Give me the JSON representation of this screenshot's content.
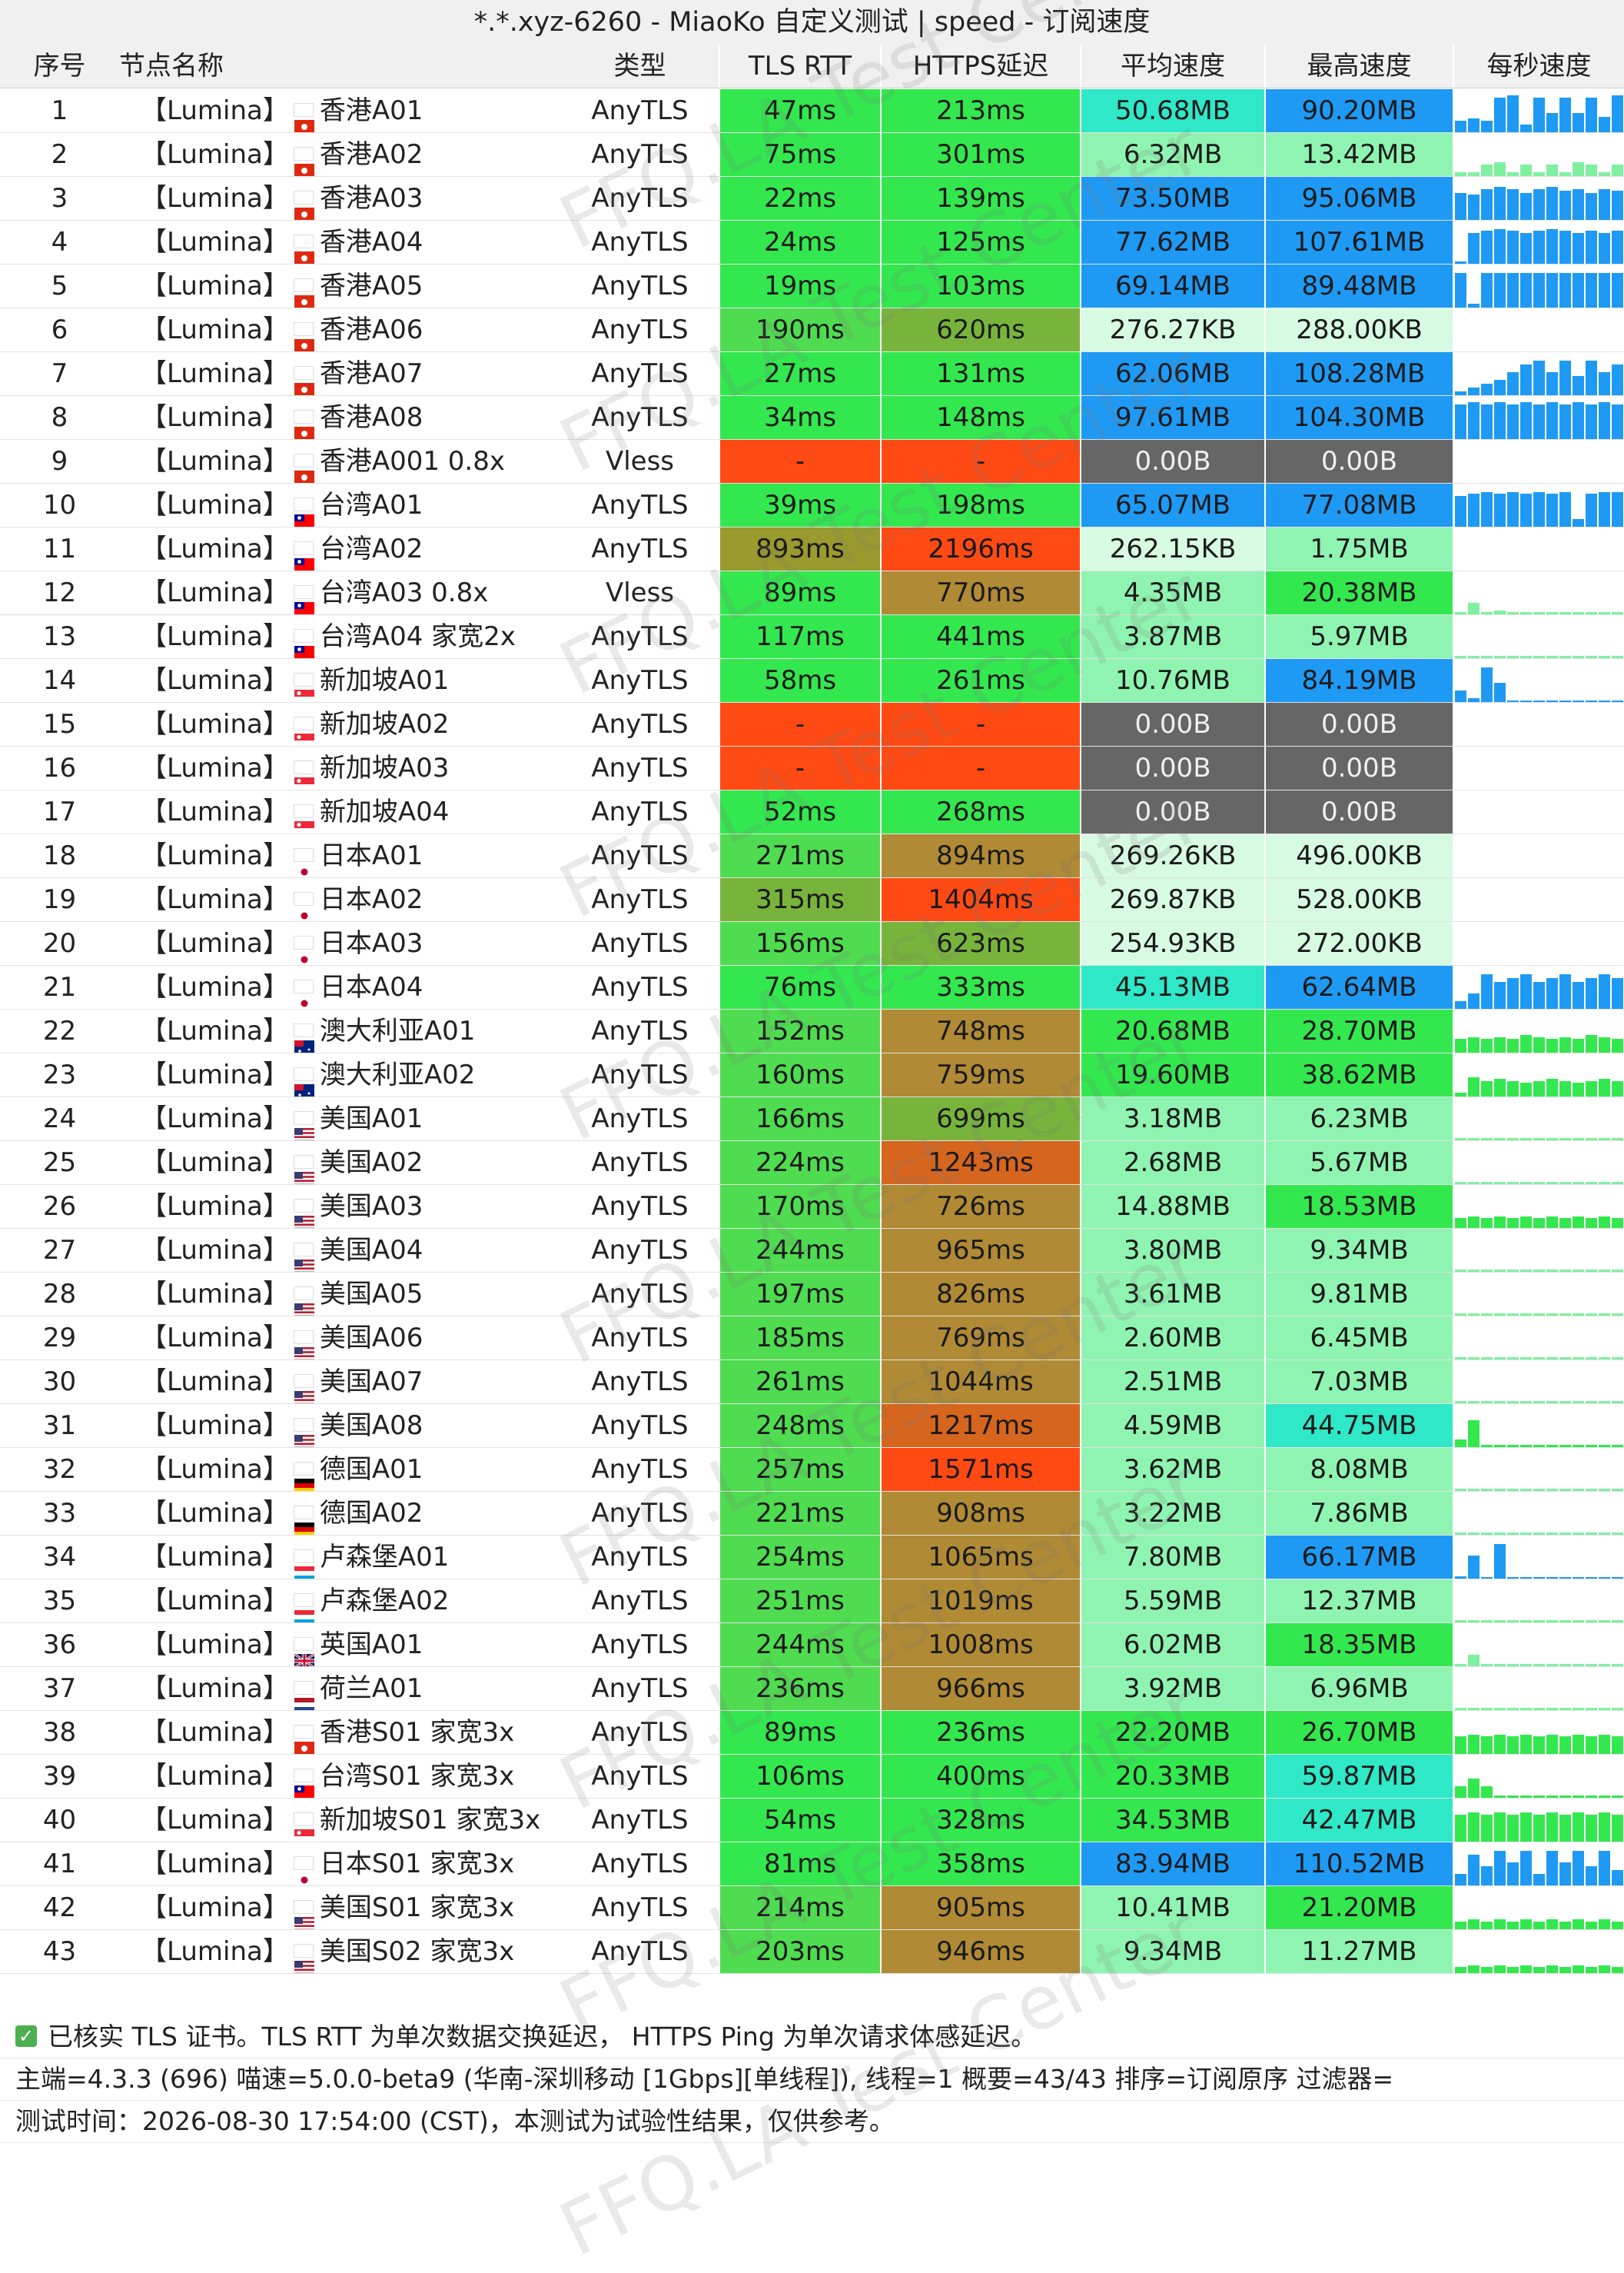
{
  "title": "*.*.xyz-6260 - MiaoKo 自定义测试 | speed - 订阅速度",
  "headers": [
    "序号",
    "节点名称",
    "类型",
    "TLS RTT",
    "HTTPS延迟",
    "平均速度",
    "最高速度",
    "每秒速度"
  ],
  "watermark": "FFQ.LA Test Center",
  "colors": {
    "red": "#ff4a14",
    "gray": "#666666",
    "blue": "#1e9af5",
    "cyan": "#2ee8c7",
    "green": "#33e84f",
    "lightgreen": "#8ff4b1",
    "pale": "#d7fae3",
    "olive": "#9a9a2e",
    "brown": "#b08a34",
    "darkgreen": "#78b43c"
  },
  "rows": [
    {
      "no": "1",
      "name": "【Lumina】",
      "flag": "hk",
      "region": "香港A01",
      "type": "AnyTLS",
      "tls": "47ms",
      "https": "213ms",
      "avg": "50.68MB",
      "max": "90.20MB",
      "spark": [
        3,
        0.3,
        0.35,
        0.3,
        0.9,
        0.95,
        0.2,
        0.9,
        0.5,
        0.9,
        0.5,
        0.9,
        0.4,
        0.95
      ]
    },
    {
      "no": "2",
      "name": "【Lumina】",
      "flag": "hk",
      "region": "香港A02",
      "type": "AnyTLS",
      "tls": "75ms",
      "https": "301ms",
      "avg": "6.32MB",
      "max": "13.42MB",
      "spark": [
        1,
        0.1,
        0.1,
        0.3,
        0.35,
        0.1,
        0.3,
        0.1,
        0.3,
        0.1,
        0.35,
        0.3,
        0.1,
        0.3
      ]
    },
    {
      "no": "3",
      "name": "【Lumina】",
      "flag": "hk",
      "region": "香港A03",
      "type": "AnyTLS",
      "tls": "22ms",
      "https": "139ms",
      "avg": "73.50MB",
      "max": "95.06MB",
      "spark": [
        3,
        0.7,
        0.65,
        0.8,
        0.85,
        0.8,
        0.7,
        0.8,
        0.85,
        0.75,
        0.8,
        0.7,
        0.8,
        0.75
      ]
    },
    {
      "no": "4",
      "name": "【Lumina】",
      "flag": "hk",
      "region": "香港A04",
      "type": "AnyTLS",
      "tls": "24ms",
      "https": "125ms",
      "avg": "77.62MB",
      "max": "107.61MB",
      "spark": [
        3,
        0.05,
        0.8,
        0.85,
        0.9,
        0.85,
        0.8,
        0.85,
        0.9,
        0.85,
        0.8,
        0.85,
        0.8,
        0.85
      ]
    },
    {
      "no": "5",
      "name": "【Lumina】",
      "flag": "hk",
      "region": "香港A05",
      "type": "AnyTLS",
      "tls": "19ms",
      "https": "103ms",
      "avg": "69.14MB",
      "max": "89.48MB",
      "spark": [
        3,
        0.9,
        0.1,
        0.9,
        0.9,
        0.9,
        0.9,
        0.9,
        0.9,
        0.9,
        0.9,
        0.9,
        0.9,
        0.9
      ]
    },
    {
      "no": "6",
      "name": "【Lumina】",
      "flag": "hk",
      "region": "香港A06",
      "type": "AnyTLS",
      "tls": "190ms",
      "https": "620ms",
      "avg": "276.27KB",
      "max": "288.00KB",
      "spark": [
        0
      ]
    },
    {
      "no": "7",
      "name": "【Lumina】",
      "flag": "hk",
      "region": "香港A07",
      "type": "AnyTLS",
      "tls": "27ms",
      "https": "131ms",
      "avg": "62.06MB",
      "max": "108.28MB",
      "spark": [
        3,
        0.1,
        0.2,
        0.3,
        0.4,
        0.6,
        0.8,
        0.9,
        0.6,
        0.9,
        0.5,
        0.9,
        0.6,
        0.8
      ]
    },
    {
      "no": "8",
      "name": "【Lumina】",
      "flag": "hk",
      "region": "香港A08",
      "type": "AnyTLS",
      "tls": "34ms",
      "https": "148ms",
      "avg": "97.61MB",
      "max": "104.30MB",
      "spark": [
        3,
        0.9,
        0.95,
        0.9,
        0.95,
        0.9,
        0.95,
        0.9,
        0.95,
        0.9,
        0.95,
        0.9,
        0.95,
        0.9
      ]
    },
    {
      "no": "9",
      "name": "【Lumina】",
      "flag": "hk",
      "region": "香港A001 0.8x",
      "type": "Vless",
      "tls": "-",
      "https": "-",
      "avg": "0.00B",
      "max": "0.00B",
      "spark": [
        0
      ]
    },
    {
      "no": "10",
      "name": "【Lumina】",
      "flag": "tw",
      "region": "台湾A01",
      "type": "AnyTLS",
      "tls": "39ms",
      "https": "198ms",
      "avg": "65.07MB",
      "max": "77.08MB",
      "spark": [
        3,
        0.8,
        0.85,
        0.9,
        0.85,
        0.9,
        0.85,
        0.9,
        0.85,
        0.9,
        0.2,
        0.85,
        0.9,
        0.9
      ]
    },
    {
      "no": "11",
      "name": "【Lumina】",
      "flag": "tw",
      "region": "台湾A02",
      "type": "AnyTLS",
      "tls": "893ms",
      "https": "2196ms",
      "avg": "262.15KB",
      "max": "1.75MB",
      "spark": [
        0
      ]
    },
    {
      "no": "12",
      "name": "【Lumina】",
      "flag": "tw",
      "region": "台湾A03 0.8x",
      "type": "Vless",
      "tls": "89ms",
      "https": "770ms",
      "avg": "4.35MB",
      "max": "20.38MB",
      "spark": [
        1,
        0.05,
        0.3,
        0.05,
        0.1,
        0.05,
        0.05,
        0.05,
        0.05,
        0.05,
        0.05,
        0.05,
        0.05,
        0.05
      ]
    },
    {
      "no": "13",
      "name": "【Lumina】",
      "flag": "tw",
      "region": "台湾A04 家宽2x",
      "type": "AnyTLS",
      "tls": "117ms",
      "https": "441ms",
      "avg": "3.87MB",
      "max": "5.97MB",
      "spark": [
        1,
        0.05,
        0.05,
        0.05,
        0.05,
        0.05,
        0.05,
        0.05,
        0.05,
        0.05,
        0.05,
        0.05,
        0.05,
        0.05
      ]
    },
    {
      "no": "14",
      "name": "【Lumina】",
      "flag": "sg",
      "region": "新加坡A01",
      "type": "AnyTLS",
      "tls": "58ms",
      "https": "261ms",
      "avg": "10.76MB",
      "max": "84.19MB",
      "spark": [
        3,
        0.3,
        0.1,
        0.9,
        0.5,
        0.0,
        0.0,
        0.0,
        0.0,
        0.0,
        0.0,
        0.0,
        0.0,
        0.0
      ]
    },
    {
      "no": "15",
      "name": "【Lumina】",
      "flag": "sg",
      "region": "新加坡A02",
      "type": "AnyTLS",
      "tls": "-",
      "https": "-",
      "avg": "0.00B",
      "max": "0.00B",
      "spark": [
        0
      ]
    },
    {
      "no": "16",
      "name": "【Lumina】",
      "flag": "sg",
      "region": "新加坡A03",
      "type": "AnyTLS",
      "tls": "-",
      "https": "-",
      "avg": "0.00B",
      "max": "0.00B",
      "spark": [
        0
      ]
    },
    {
      "no": "17",
      "name": "【Lumina】",
      "flag": "sg",
      "region": "新加坡A04",
      "type": "AnyTLS",
      "tls": "52ms",
      "https": "268ms",
      "avg": "0.00B",
      "max": "0.00B",
      "spark": [
        0
      ]
    },
    {
      "no": "18",
      "name": "【Lumina】",
      "flag": "jp",
      "region": "日本A01",
      "type": "AnyTLS",
      "tls": "271ms",
      "https": "894ms",
      "avg": "269.26KB",
      "max": "496.00KB",
      "spark": [
        0
      ]
    },
    {
      "no": "19",
      "name": "【Lumina】",
      "flag": "jp",
      "region": "日本A02",
      "type": "AnyTLS",
      "tls": "315ms",
      "https": "1404ms",
      "avg": "269.87KB",
      "max": "528.00KB",
      "spark": [
        0
      ]
    },
    {
      "no": "20",
      "name": "【Lumina】",
      "flag": "jp",
      "region": "日本A03",
      "type": "AnyTLS",
      "tls": "156ms",
      "https": "623ms",
      "avg": "254.93KB",
      "max": "272.00KB",
      "spark": [
        0
      ]
    },
    {
      "no": "21",
      "name": "【Lumina】",
      "flag": "jp",
      "region": "日本A04",
      "type": "AnyTLS",
      "tls": "76ms",
      "https": "333ms",
      "avg": "45.13MB",
      "max": "62.64MB",
      "spark": [
        3,
        0.2,
        0.4,
        0.9,
        0.7,
        0.8,
        0.9,
        0.7,
        0.8,
        0.9,
        0.7,
        0.8,
        0.9,
        0.8
      ]
    },
    {
      "no": "22",
      "name": "【Lumina】",
      "flag": "au",
      "region": "澳大利亚A01",
      "type": "AnyTLS",
      "tls": "152ms",
      "https": "748ms",
      "avg": "20.68MB",
      "max": "28.70MB",
      "spark": [
        2,
        0.35,
        0.4,
        0.35,
        0.4,
        0.35,
        0.45,
        0.4,
        0.35,
        0.4,
        0.35,
        0.45,
        0.4,
        0.35
      ]
    },
    {
      "no": "23",
      "name": "【Lumina】",
      "flag": "au",
      "region": "澳大利亚A02",
      "type": "AnyTLS",
      "tls": "160ms",
      "https": "759ms",
      "avg": "19.60MB",
      "max": "38.62MB",
      "spark": [
        2,
        0.1,
        0.5,
        0.4,
        0.45,
        0.4,
        0.35,
        0.4,
        0.45,
        0.4,
        0.35,
        0.4,
        0.45,
        0.4
      ]
    },
    {
      "no": "24",
      "name": "【Lumina】",
      "flag": "us",
      "region": "美国A01",
      "type": "AnyTLS",
      "tls": "166ms",
      "https": "699ms",
      "avg": "3.18MB",
      "max": "6.23MB",
      "spark": [
        1,
        0.05,
        0.05,
        0.05,
        0.05,
        0.05,
        0.05,
        0.05,
        0.05,
        0.05,
        0.05,
        0.05,
        0.05,
        0.05
      ]
    },
    {
      "no": "25",
      "name": "【Lumina】",
      "flag": "us",
      "region": "美国A02",
      "type": "AnyTLS",
      "tls": "224ms",
      "https": "1243ms",
      "avg": "2.68MB",
      "max": "5.67MB",
      "spark": [
        1,
        0.05,
        0.05,
        0.05,
        0.05,
        0.05,
        0.05,
        0.05,
        0.05,
        0.05,
        0.05,
        0.05,
        0.05,
        0.05
      ]
    },
    {
      "no": "26",
      "name": "【Lumina】",
      "flag": "us",
      "region": "美国A03",
      "type": "AnyTLS",
      "tls": "170ms",
      "https": "726ms",
      "avg": "14.88MB",
      "max": "18.53MB",
      "spark": [
        2,
        0.25,
        0.3,
        0.25,
        0.3,
        0.25,
        0.3,
        0.25,
        0.3,
        0.25,
        0.3,
        0.25,
        0.3,
        0.25
      ]
    },
    {
      "no": "27",
      "name": "【Lumina】",
      "flag": "us",
      "region": "美国A04",
      "type": "AnyTLS",
      "tls": "244ms",
      "https": "965ms",
      "avg": "3.80MB",
      "max": "9.34MB",
      "spark": [
        1,
        0.05,
        0.05,
        0.05,
        0.05,
        0.05,
        0.05,
        0.05,
        0.05,
        0.05,
        0.05,
        0.05,
        0.05,
        0.05
      ]
    },
    {
      "no": "28",
      "name": "【Lumina】",
      "flag": "us",
      "region": "美国A05",
      "type": "AnyTLS",
      "tls": "197ms",
      "https": "826ms",
      "avg": "3.61MB",
      "max": "9.81MB",
      "spark": [
        1,
        0.05,
        0.05,
        0.05,
        0.05,
        0.05,
        0.05,
        0.05,
        0.05,
        0.05,
        0.05,
        0.05,
        0.05,
        0.05
      ]
    },
    {
      "no": "29",
      "name": "【Lumina】",
      "flag": "us",
      "region": "美国A06",
      "type": "AnyTLS",
      "tls": "185ms",
      "https": "769ms",
      "avg": "2.60MB",
      "max": "6.45MB",
      "spark": [
        1,
        0.05,
        0.05,
        0.05,
        0.05,
        0.05,
        0.05,
        0.05,
        0.05,
        0.05,
        0.05,
        0.05,
        0.05,
        0.05
      ]
    },
    {
      "no": "30",
      "name": "【Lumina】",
      "flag": "us",
      "region": "美国A07",
      "type": "AnyTLS",
      "tls": "261ms",
      "https": "1044ms",
      "avg": "2.51MB",
      "max": "7.03MB",
      "spark": [
        1,
        0.05,
        0.05,
        0.05,
        0.05,
        0.05,
        0.05,
        0.05,
        0.05,
        0.05,
        0.05,
        0.05,
        0.05,
        0.05
      ]
    },
    {
      "no": "31",
      "name": "【Lumina】",
      "flag": "us",
      "region": "美国A08",
      "type": "AnyTLS",
      "tls": "248ms",
      "https": "1217ms",
      "avg": "4.59MB",
      "max": "44.75MB",
      "spark": [
        2,
        0.2,
        0.7,
        0.05,
        0.05,
        0.05,
        0.05,
        0.05,
        0.05,
        0.05,
        0.05,
        0.05,
        0.05,
        0.05
      ]
    },
    {
      "no": "32",
      "name": "【Lumina】",
      "flag": "de",
      "region": "德国A01",
      "type": "AnyTLS",
      "tls": "257ms",
      "https": "1571ms",
      "avg": "3.62MB",
      "max": "8.08MB",
      "spark": [
        1,
        0.05,
        0.05,
        0.05,
        0.05,
        0.05,
        0.05,
        0.05,
        0.05,
        0.05,
        0.05,
        0.05,
        0.05,
        0.05
      ]
    },
    {
      "no": "33",
      "name": "【Lumina】",
      "flag": "de",
      "region": "德国A02",
      "type": "AnyTLS",
      "tls": "221ms",
      "https": "908ms",
      "avg": "3.22MB",
      "max": "7.86MB",
      "spark": [
        1,
        0.05,
        0.05,
        0.05,
        0.05,
        0.05,
        0.05,
        0.05,
        0.05,
        0.05,
        0.05,
        0.05,
        0.05,
        0.05
      ]
    },
    {
      "no": "34",
      "name": "【Lumina】",
      "flag": "lu",
      "region": "卢森堡A01",
      "type": "AnyTLS",
      "tls": "254ms",
      "https": "1065ms",
      "avg": "7.80MB",
      "max": "66.17MB",
      "spark": [
        3,
        0.05,
        0.6,
        0.0,
        0.9,
        0.0,
        0.0,
        0.0,
        0.0,
        0.0,
        0.0,
        0.0,
        0.0,
        0.0
      ]
    },
    {
      "no": "35",
      "name": "【Lumina】",
      "flag": "lu",
      "region": "卢森堡A02",
      "type": "AnyTLS",
      "tls": "251ms",
      "https": "1019ms",
      "avg": "5.59MB",
      "max": "12.37MB",
      "spark": [
        1,
        0.05,
        0.05,
        0.05,
        0.05,
        0.05,
        0.05,
        0.05,
        0.05,
        0.05,
        0.05,
        0.05,
        0.05,
        0.05
      ]
    },
    {
      "no": "36",
      "name": "【Lumina】",
      "flag": "gb",
      "region": "英国A01",
      "type": "AnyTLS",
      "tls": "244ms",
      "https": "1008ms",
      "avg": "6.02MB",
      "max": "18.35MB",
      "spark": [
        1,
        0.05,
        0.3,
        0.05,
        0.05,
        0.05,
        0.05,
        0.05,
        0.05,
        0.05,
        0.05,
        0.05,
        0.05,
        0.05
      ]
    },
    {
      "no": "37",
      "name": "【Lumina】",
      "flag": "nl",
      "region": "荷兰A01",
      "type": "AnyTLS",
      "tls": "236ms",
      "https": "966ms",
      "avg": "3.92MB",
      "max": "6.96MB",
      "spark": [
        1,
        0.05,
        0.05,
        0.05,
        0.05,
        0.05,
        0.05,
        0.05,
        0.05,
        0.05,
        0.05,
        0.05,
        0.05,
        0.05
      ]
    },
    {
      "no": "38",
      "name": "【Lumina】",
      "flag": "hk",
      "region": "香港S01 家宽3x",
      "type": "AnyTLS",
      "tls": "89ms",
      "https": "236ms",
      "avg": "22.20MB",
      "max": "26.70MB",
      "spark": [
        2,
        0.45,
        0.5,
        0.45,
        0.5,
        0.45,
        0.5,
        0.45,
        0.5,
        0.45,
        0.5,
        0.45,
        0.5,
        0.45
      ]
    },
    {
      "no": "39",
      "name": "【Lumina】",
      "flag": "tw",
      "region": "台湾S01 家宽3x",
      "type": "AnyTLS",
      "tls": "106ms",
      "https": "400ms",
      "avg": "20.33MB",
      "max": "59.87MB",
      "spark": [
        2,
        0.3,
        0.5,
        0.3,
        0.05,
        0.05,
        0.05,
        0.05,
        0.05,
        0.05,
        0.05,
        0.05,
        0.05,
        0.05
      ]
    },
    {
      "no": "40",
      "name": "【Lumina】",
      "flag": "sg",
      "region": "新加坡S01 家宽3x",
      "type": "AnyTLS",
      "tls": "54ms",
      "https": "328ms",
      "avg": "34.53MB",
      "max": "42.47MB",
      "spark": [
        2,
        0.7,
        0.75,
        0.7,
        0.75,
        0.7,
        0.75,
        0.7,
        0.75,
        0.7,
        0.75,
        0.7,
        0.75,
        0.7
      ]
    },
    {
      "no": "41",
      "name": "【Lumina】",
      "flag": "jp",
      "region": "日本S01 家宽3x",
      "type": "AnyTLS",
      "tls": "81ms",
      "https": "358ms",
      "avg": "83.94MB",
      "max": "110.52MB",
      "spark": [
        3,
        0.3,
        0.8,
        0.5,
        0.9,
        0.6,
        0.9,
        0.3,
        0.9,
        0.6,
        0.9,
        0.5,
        0.9,
        0.4
      ]
    },
    {
      "no": "42",
      "name": "【Lumina】",
      "flag": "us",
      "region": "美国S01 家宽3x",
      "type": "AnyTLS",
      "tls": "214ms",
      "https": "905ms",
      "avg": "10.41MB",
      "max": "21.20MB",
      "spark": [
        2,
        0.2,
        0.25,
        0.2,
        0.25,
        0.2,
        0.25,
        0.2,
        0.25,
        0.2,
        0.25,
        0.2,
        0.25,
        0.2
      ]
    },
    {
      "no": "43",
      "name": "【Lumina】",
      "flag": "us",
      "region": "美国S02 家宽3x",
      "type": "AnyTLS",
      "tls": "203ms",
      "https": "946ms",
      "avg": "9.34MB",
      "max": "11.27MB",
      "spark": [
        2,
        0.15,
        0.2,
        0.15,
        0.2,
        0.15,
        0.2,
        0.15,
        0.2,
        0.15,
        0.2,
        0.15,
        0.2,
        0.15
      ]
    }
  ],
  "footer": {
    "note": "已核实 TLS 证书。TLS RTT 为单次数据交换延迟， HTTPS Ping 为单次请求体感延迟。",
    "info": "主端=4.3.3 (696) 喵速=5.0.0-beta9 (华南-深圳移动 [1Gbps][单线程]), 线程=1 概要=43/43 排序=订阅原序 过滤器=",
    "time": "测试时间：2026-08-30 17:54:00 (CST)，本测试为试验性结果，仅供参考。"
  }
}
